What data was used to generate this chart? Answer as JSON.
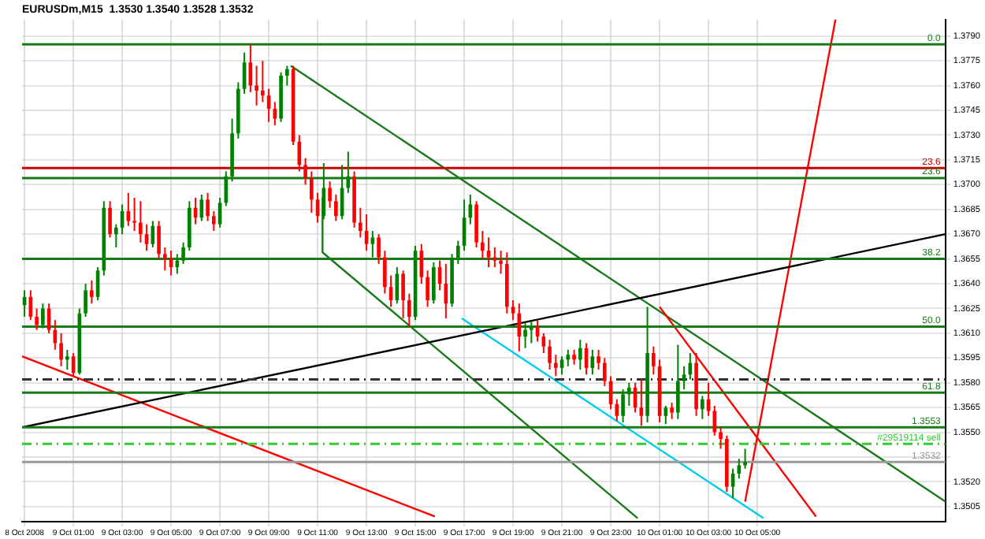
{
  "chart_data": {
    "type": "candlestick",
    "title": "EURUSDm,M15  1.3530 1.3540 1.3528 1.3532",
    "x": [
      "2008-10-08T23:00",
      "2008-10-08T23:15",
      "2008-10-08T23:30",
      "2008-10-08T23:45",
      "2008-10-09T00:00",
      "2008-10-09T00:15",
      "2008-10-09T00:30",
      "2008-10-09T00:45",
      "2008-10-09T01:00",
      "2008-10-09T01:15",
      "2008-10-09T01:30",
      "2008-10-09T01:45",
      "2008-10-09T02:00",
      "2008-10-09T02:15",
      "2008-10-09T02:30",
      "2008-10-09T02:45",
      "2008-10-09T03:00",
      "2008-10-09T03:15",
      "2008-10-09T03:30",
      "2008-10-09T03:45",
      "2008-10-09T04:00",
      "2008-10-09T04:15",
      "2008-10-09T04:30",
      "2008-10-09T04:45",
      "2008-10-09T05:00",
      "2008-10-09T05:15",
      "2008-10-09T05:30",
      "2008-10-09T05:45",
      "2008-10-09T06:00",
      "2008-10-09T06:15",
      "2008-10-09T06:30",
      "2008-10-09T06:45",
      "2008-10-09T07:00",
      "2008-10-09T07:15",
      "2008-10-09T07:30",
      "2008-10-09T07:45",
      "2008-10-09T08:00",
      "2008-10-09T08:15",
      "2008-10-09T08:30",
      "2008-10-09T08:45",
      "2008-10-09T09:00",
      "2008-10-09T09:15",
      "2008-10-09T09:30",
      "2008-10-09T09:45",
      "2008-10-09T10:00",
      "2008-10-09T10:15",
      "2008-10-09T10:30",
      "2008-10-09T10:45",
      "2008-10-09T11:00",
      "2008-10-09T11:15",
      "2008-10-09T11:30",
      "2008-10-09T11:45",
      "2008-10-09T12:00",
      "2008-10-09T12:15",
      "2008-10-09T12:30",
      "2008-10-09T12:45",
      "2008-10-09T13:00",
      "2008-10-09T13:15",
      "2008-10-09T13:30",
      "2008-10-09T13:45",
      "2008-10-09T14:00",
      "2008-10-09T14:15",
      "2008-10-09T14:30",
      "2008-10-09T14:45",
      "2008-10-09T15:00",
      "2008-10-09T15:15",
      "2008-10-09T15:30",
      "2008-10-09T15:45",
      "2008-10-09T16:00",
      "2008-10-09T16:15",
      "2008-10-09T16:30",
      "2008-10-09T16:45",
      "2008-10-09T17:00",
      "2008-10-09T17:15",
      "2008-10-09T17:30",
      "2008-10-09T17:45",
      "2008-10-09T18:00",
      "2008-10-09T18:15",
      "2008-10-09T18:30",
      "2008-10-09T18:45",
      "2008-10-09T19:00",
      "2008-10-09T19:15",
      "2008-10-09T19:30",
      "2008-10-09T19:45",
      "2008-10-09T20:00",
      "2008-10-09T20:15",
      "2008-10-09T20:30",
      "2008-10-09T20:45",
      "2008-10-09T21:00",
      "2008-10-09T21:15",
      "2008-10-09T21:30",
      "2008-10-09T21:45",
      "2008-10-09T22:00",
      "2008-10-09T22:15",
      "2008-10-09T22:30",
      "2008-10-09T22:45",
      "2008-10-09T23:00",
      "2008-10-09T23:15",
      "2008-10-09T23:30",
      "2008-10-09T23:45",
      "2008-10-10T00:00",
      "2008-10-10T00:15",
      "2008-10-10T00:30",
      "2008-10-10T00:45",
      "2008-10-10T01:00",
      "2008-10-10T01:15",
      "2008-10-10T01:30",
      "2008-10-10T01:45",
      "2008-10-10T02:00",
      "2008-10-10T02:15",
      "2008-10-10T02:30",
      "2008-10-10T02:45",
      "2008-10-10T03:00",
      "2008-10-10T03:15",
      "2008-10-10T03:30",
      "2008-10-10T03:45",
      "2008-10-10T04:00",
      "2008-10-10T04:15",
      "2008-10-10T04:30"
    ],
    "ohlc": [
      [
        1.3627,
        1.3636,
        1.362,
        1.3632
      ],
      [
        1.3632,
        1.3636,
        1.3618,
        1.362
      ],
      [
        1.362,
        1.3625,
        1.3612,
        1.3615
      ],
      [
        1.3615,
        1.3628,
        1.3613,
        1.3625
      ],
      [
        1.3625,
        1.3628,
        1.361,
        1.3612
      ],
      [
        1.3612,
        1.3618,
        1.36,
        1.3604
      ],
      [
        1.3604,
        1.361,
        1.359,
        1.3594
      ],
      [
        1.3594,
        1.36,
        1.3588,
        1.3596
      ],
      [
        1.3596,
        1.3598,
        1.3584,
        1.3586
      ],
      [
        1.3586,
        1.3625,
        1.3585,
        1.3622
      ],
      [
        1.3622,
        1.364,
        1.362,
        1.3636
      ],
      [
        1.3636,
        1.3642,
        1.3628,
        1.3632
      ],
      [
        1.3632,
        1.365,
        1.363,
        1.3648
      ],
      [
        1.3648,
        1.369,
        1.3645,
        1.3686
      ],
      [
        1.3686,
        1.369,
        1.3668,
        1.367
      ],
      [
        1.367,
        1.3676,
        1.3662,
        1.3674
      ],
      [
        1.3674,
        1.3688,
        1.367,
        1.3684
      ],
      [
        1.3684,
        1.3695,
        1.3675,
        1.3678
      ],
      [
        1.3678,
        1.3692,
        1.3672,
        1.3677
      ],
      [
        1.3677,
        1.369,
        1.3665,
        1.367
      ],
      [
        1.367,
        1.3676,
        1.366,
        1.3664
      ],
      [
        1.3664,
        1.3678,
        1.3662,
        1.3675
      ],
      [
        1.3675,
        1.3678,
        1.3655,
        1.3658
      ],
      [
        1.3658,
        1.3662,
        1.3648,
        1.3655
      ],
      [
        1.3655,
        1.366,
        1.3645,
        1.365
      ],
      [
        1.365,
        1.3658,
        1.3646,
        1.3654
      ],
      [
        1.3654,
        1.3665,
        1.3652,
        1.3662
      ],
      [
        1.3662,
        1.369,
        1.366,
        1.3686
      ],
      [
        1.3686,
        1.3692,
        1.3676,
        1.368
      ],
      [
        1.368,
        1.3694,
        1.3678,
        1.3691
      ],
      [
        1.3691,
        1.3695,
        1.3678,
        1.3681
      ],
      [
        1.3681,
        1.3684,
        1.3672,
        1.3676
      ],
      [
        1.3676,
        1.3692,
        1.3674,
        1.3689
      ],
      [
        1.3689,
        1.3708,
        1.3687,
        1.3705
      ],
      [
        1.3705,
        1.374,
        1.3702,
        1.3731
      ],
      [
        1.3731,
        1.3762,
        1.3728,
        1.3758
      ],
      [
        1.3758,
        1.378,
        1.3755,
        1.3774
      ],
      [
        1.3774,
        1.3785,
        1.3756,
        1.376
      ],
      [
        1.376,
        1.3772,
        1.3748,
        1.3757
      ],
      [
        1.3757,
        1.3775,
        1.375,
        1.3754
      ],
      [
        1.3754,
        1.3758,
        1.3738,
        1.3746
      ],
      [
        1.3746,
        1.375,
        1.3736,
        1.374
      ],
      [
        1.374,
        1.3768,
        1.3738,
        1.3766
      ],
      [
        1.3766,
        1.3772,
        1.376,
        1.377
      ],
      [
        1.377,
        1.3772,
        1.3724,
        1.3726
      ],
      [
        1.3726,
        1.373,
        1.3708,
        1.3712
      ],
      [
        1.3712,
        1.3716,
        1.37,
        1.3704
      ],
      [
        1.3704,
        1.3708,
        1.3683,
        1.3691
      ],
      [
        1.3691,
        1.3695,
        1.3677,
        1.3681
      ],
      [
        1.3681,
        1.3713,
        1.3679,
        1.3698
      ],
      [
        1.3698,
        1.3702,
        1.3686,
        1.369
      ],
      [
        1.369,
        1.3694,
        1.3678,
        1.3681
      ],
      [
        1.3681,
        1.3712,
        1.3679,
        1.3698
      ],
      [
        1.3698,
        1.372,
        1.3695,
        1.3705
      ],
      [
        1.3705,
        1.3708,
        1.3674,
        1.3677
      ],
      [
        1.3677,
        1.3686,
        1.3668,
        1.3672
      ],
      [
        1.3672,
        1.3682,
        1.366,
        1.3664
      ],
      [
        1.3664,
        1.3672,
        1.3656,
        1.3668
      ],
      [
        1.3668,
        1.367,
        1.3652,
        1.3656
      ],
      [
        1.3656,
        1.366,
        1.3634,
        1.3638
      ],
      [
        1.3638,
        1.3645,
        1.3626,
        1.363
      ],
      [
        1.363,
        1.365,
        1.3628,
        1.3646
      ],
      [
        1.3646,
        1.3648,
        1.3619,
        1.363
      ],
      [
        1.363,
        1.3634,
        1.3614,
        1.362
      ],
      [
        1.362,
        1.3663,
        1.3618,
        1.366
      ],
      [
        1.366,
        1.3664,
        1.364,
        1.3644
      ],
      [
        1.3644,
        1.3648,
        1.3626,
        1.363
      ],
      [
        1.363,
        1.3653,
        1.3628,
        1.365
      ],
      [
        1.365,
        1.3654,
        1.3636,
        1.364
      ],
      [
        1.364,
        1.3652,
        1.3619,
        1.3628
      ],
      [
        1.3628,
        1.3658,
        1.3626,
        1.3655
      ],
      [
        1.3655,
        1.3666,
        1.3652,
        1.3663
      ],
      [
        1.3663,
        1.3691,
        1.366,
        1.368
      ],
      [
        1.368,
        1.3694,
        1.3676,
        1.3688
      ],
      [
        1.3688,
        1.369,
        1.3662,
        1.3665
      ],
      [
        1.3665,
        1.3672,
        1.3655,
        1.366
      ],
      [
        1.366,
        1.3668,
        1.365,
        1.3656
      ],
      [
        1.3656,
        1.3662,
        1.365,
        1.3654
      ],
      [
        1.3654,
        1.366,
        1.3646,
        1.3652
      ],
      [
        1.3652,
        1.3659,
        1.3622,
        1.3626
      ],
      [
        1.3626,
        1.363,
        1.3618,
        1.3622
      ],
      [
        1.3622,
        1.3628,
        1.3599,
        1.3608
      ],
      [
        1.3608,
        1.3616,
        1.3601,
        1.3612
      ],
      [
        1.3612,
        1.3617,
        1.3604,
        1.3614
      ],
      [
        1.3614,
        1.3618,
        1.3605,
        1.3608
      ],
      [
        1.3608,
        1.361,
        1.3598,
        1.3602
      ],
      [
        1.3602,
        1.3606,
        1.3588,
        1.3592
      ],
      [
        1.3592,
        1.3597,
        1.3584,
        1.3589
      ],
      [
        1.3589,
        1.3596,
        1.3585,
        1.3594
      ],
      [
        1.3594,
        1.36,
        1.359,
        1.3597
      ],
      [
        1.3597,
        1.36,
        1.3591,
        1.3594
      ],
      [
        1.3594,
        1.3606,
        1.3588,
        1.3601
      ],
      [
        1.3601,
        1.3604,
        1.3585,
        1.3589
      ],
      [
        1.3589,
        1.36,
        1.3585,
        1.3596
      ],
      [
        1.3596,
        1.36,
        1.3588,
        1.3592
      ],
      [
        1.3592,
        1.3595,
        1.3578,
        1.3581
      ],
      [
        1.3581,
        1.3584,
        1.3564,
        1.3567
      ],
      [
        1.3567,
        1.357,
        1.3557,
        1.356
      ],
      [
        1.356,
        1.3576,
        1.3556,
        1.3573
      ],
      [
        1.3573,
        1.358,
        1.3566,
        1.3577
      ],
      [
        1.3577,
        1.358,
        1.3562,
        1.3565
      ],
      [
        1.3565,
        1.3582,
        1.3554,
        1.356
      ],
      [
        1.356,
        1.3626,
        1.3556,
        1.3598
      ],
      [
        1.3598,
        1.3602,
        1.3585,
        1.359
      ],
      [
        1.359,
        1.3594,
        1.3556,
        1.356
      ],
      [
        1.356,
        1.3566,
        1.3555,
        1.3565
      ],
      [
        1.3565,
        1.3568,
        1.3558,
        1.3562
      ],
      [
        1.3562,
        1.3603,
        1.3558,
        1.3581
      ],
      [
        1.3581,
        1.359,
        1.3576,
        1.3585
      ],
      [
        1.3585,
        1.3598,
        1.3582,
        1.3592
      ],
      [
        1.3592,
        1.3598,
        1.356,
        1.3564
      ],
      [
        1.3564,
        1.3572,
        1.3558,
        1.357
      ],
      [
        1.357,
        1.358,
        1.356,
        1.3563
      ],
      [
        1.3563,
        1.3566,
        1.3548,
        1.355
      ],
      [
        1.355,
        1.3553,
        1.354,
        1.3546
      ],
      [
        1.3546,
        1.3548,
        1.3514,
        1.3517
      ],
      [
        1.3517,
        1.3528,
        1.351,
        1.3525
      ],
      [
        1.3525,
        1.3534,
        1.3522,
        1.353
      ],
      [
        1.353,
        1.354,
        1.3528,
        1.3532
      ]
    ],
    "colors": [
      "#008000",
      "#ff0000",
      "#ff0000",
      "#008000",
      "#ff0000",
      "#ff0000",
      "#ff0000",
      "#008000",
      "#ff0000",
      "#008000",
      "#008000",
      "#ff0000",
      "#008000",
      "#008000",
      "#ff0000",
      "#008000",
      "#008000",
      "#ff0000",
      "#ff0000",
      "#ff0000",
      "#ff0000",
      "#008000",
      "#ff0000",
      "#ff0000",
      "#ff0000",
      "#008000",
      "#008000",
      "#008000",
      "#ff0000",
      "#008000",
      "#ff0000",
      "#ff0000",
      "#008000",
      "#008000",
      "#008000",
      "#008000",
      "#008000",
      "#ff0000",
      "#ff0000",
      "#ff0000",
      "#ff0000",
      "#ff0000",
      "#008000",
      "#008000",
      "#ff0000",
      "#ff0000",
      "#ff0000",
      "#ff0000",
      "#ff0000",
      "#008000",
      "#ff0000",
      "#ff0000",
      "#008000",
      "#008000",
      "#ff0000",
      "#ff0000",
      "#ff0000",
      "#008000",
      "#ff0000",
      "#ff0000",
      "#ff0000",
      "#008000",
      "#ff0000",
      "#ff0000",
      "#008000",
      "#ff0000",
      "#ff0000",
      "#008000",
      "#ff0000",
      "#ff0000",
      "#008000",
      "#008000",
      "#008000",
      "#008000",
      "#ff0000",
      "#ff0000",
      "#ff0000",
      "#ff0000",
      "#ff0000",
      "#ff0000",
      "#ff0000",
      "#ff0000",
      "#008000",
      "#008000",
      "#ff0000",
      "#ff0000",
      "#ff0000",
      "#ff0000",
      "#008000",
      "#008000",
      "#ff0000",
      "#008000",
      "#ff0000",
      "#008000",
      "#ff0000",
      "#ff0000",
      "#ff0000",
      "#ff0000",
      "#008000",
      "#008000",
      "#ff0000",
      "#ff0000",
      "#008000",
      "#ff0000",
      "#ff0000",
      "#008000",
      "#ff0000",
      "#008000",
      "#008000",
      "#008000",
      "#ff0000",
      "#008000",
      "#ff0000",
      "#ff0000",
      "#ff0000",
      "#ff0000",
      "#008000",
      "#008000",
      "#008000"
    ],
    "series": [
      {
        "type": "line",
        "color": "#000000",
        "x": [
          "2008-10-08T22:54",
          "2008-10-10T12:42"
        ],
        "values": [
          1.3553,
          1.367
        ]
      },
      {
        "type": "line",
        "color": "#ff0000",
        "x": [
          "2008-10-08T22:54",
          "2008-10-09T15:48"
        ],
        "values": [
          1.3596,
          1.3499
        ]
      },
      {
        "type": "line",
        "color": "#ff0000",
        "x": [
          "2008-10-10T04:30",
          "2008-10-10T08:12"
        ],
        "values": [
          1.3508,
          1.38
        ]
      },
      {
        "type": "line",
        "color": "#ff0000",
        "x": [
          "2008-10-10T01:00",
          "2008-10-10T07:24"
        ],
        "values": [
          1.3626,
          1.3499
        ]
      },
      {
        "type": "line",
        "color": "#00ccee",
        "x": [
          "2008-10-09T16:54",
          "2008-10-10T05:15"
        ],
        "values": [
          1.3619,
          1.3498
        ]
      },
      {
        "type": "line",
        "color": "#1a7a1a",
        "x": [
          "2008-10-09T09:54",
          "2008-10-10T12:42"
        ],
        "values": [
          1.3772,
          1.3508
        ]
      },
      {
        "type": "line",
        "color": "#1a7a1a",
        "x": [
          "2008-10-09T11:12",
          "2008-10-09T11:12",
          "2008-10-10T00:06"
        ],
        "values": [
          1.3692,
          1.3659,
          1.3498
        ]
      }
    ],
    "ref_lines": [
      {
        "axis": "y",
        "value": 1.3785,
        "color": "#1a7a1a",
        "line_style": "solid"
      },
      {
        "axis": "y",
        "value": 1.371,
        "color": "#cc0000",
        "line_style": "solid"
      },
      {
        "axis": "y",
        "value": 1.3704,
        "color": "#1a7a1a",
        "line_style": "solid"
      },
      {
        "axis": "y",
        "value": 1.3655,
        "color": "#1a7a1a",
        "line_style": "solid"
      },
      {
        "axis": "y",
        "value": 1.3614,
        "color": "#1a7a1a",
        "line_style": "solid"
      },
      {
        "axis": "y",
        "value": 1.3582,
        "color": "#333333",
        "line_style": "dashed"
      },
      {
        "axis": "y",
        "value": 1.3574,
        "color": "#1a7a1a",
        "line_style": "solid"
      },
      {
        "axis": "y",
        "value": 1.3553,
        "label": "1.3553",
        "color": "#1a7a1a",
        "line_style": "solid"
      },
      {
        "axis": "y",
        "value": 1.3543,
        "label": "#29519114 sell",
        "color": "#33cc33",
        "line_style": "dashed"
      },
      {
        "axis": "y",
        "value": 1.3532,
        "label": "1.3532",
        "color": "#999999",
        "line_style": "solid"
      }
    ],
    "annotations": [
      {
        "text": "0.0",
        "x": "2008-10-10T12:30",
        "y": 1.3785
      },
      {
        "text": "23.6",
        "x": "2008-10-10T12:30",
        "y": 1.371
      },
      {
        "text": "23.6",
        "x": "2008-10-10T12:30",
        "y": 1.3704
      },
      {
        "text": "38.2",
        "x": "2008-10-10T12:30",
        "y": 1.3655
      },
      {
        "text": "50.0",
        "x": "2008-10-10T12:30",
        "y": 1.3614
      },
      {
        "text": "61.8",
        "x": "2008-10-10T12:30",
        "y": 1.3574
      }
    ],
    "xlim": [
      "2008-10-08T22:54",
      "2008-10-10T12:42"
    ],
    "ylim": [
      1.3496,
      1.38
    ],
    "xticks": [
      {
        "value": "2008-10-08T23:00",
        "label": "8 Oct 2008"
      },
      {
        "value": "2008-10-09T01:00",
        "label": "9 Oct 01:00"
      },
      {
        "value": "2008-10-09T03:00",
        "label": "9 Oct 03:00"
      },
      {
        "value": "2008-10-09T05:00",
        "label": "9 Oct 05:00"
      },
      {
        "value": "2008-10-09T07:00",
        "label": "9 Oct 07:00"
      },
      {
        "value": "2008-10-09T09:00",
        "label": "9 Oct 09:00"
      },
      {
        "value": "2008-10-09T11:00",
        "label": "9 Oct 11:00"
      },
      {
        "value": "2008-10-09T13:00",
        "label": "9 Oct 13:00"
      },
      {
        "value": "2008-10-09T15:00",
        "label": "9 Oct 15:00"
      },
      {
        "value": "2008-10-09T17:00",
        "label": "9 Oct 17:00"
      },
      {
        "value": "2008-10-09T19:00",
        "label": "9 Oct 19:00"
      },
      {
        "value": "2008-10-09T21:00",
        "label": "9 Oct 21:00"
      },
      {
        "value": "2008-10-09T23:00",
        "label": "9 Oct 23:00"
      },
      {
        "value": "2008-10-10T01:00",
        "label": "10 Oct 01:00"
      },
      {
        "value": "2008-10-10T03:00",
        "label": "10 Oct 03:00"
      },
      {
        "value": "2008-10-10T05:00",
        "label": "10 Oct 05:00"
      }
    ],
    "yticks": [
      1.3505,
      {
        "value": 1.352,
        "label": "1.3520"
      },
      {
        "value": 1.3535,
        "label": null
      },
      {
        "value": 1.355,
        "label": "1.3550"
      },
      1.3565,
      {
        "value": 1.358,
        "label": "1.3580"
      },
      1.3595,
      {
        "value": 1.361,
        "label": "1.3610"
      },
      1.3625,
      {
        "value": 1.364,
        "label": "1.3640"
      },
      1.3655,
      {
        "value": 1.367,
        "label": "1.3670"
      },
      1.3685,
      {
        "value": 1.37,
        "label": "1.3700"
      },
      1.3715,
      {
        "value": 1.373,
        "label": "1.3730"
      },
      1.3745,
      {
        "value": 1.376,
        "label": "1.3760"
      },
      1.3775,
      {
        "value": 1.379,
        "label": "1.3790"
      }
    ],
    "grid": true,
    "legend": false
  }
}
